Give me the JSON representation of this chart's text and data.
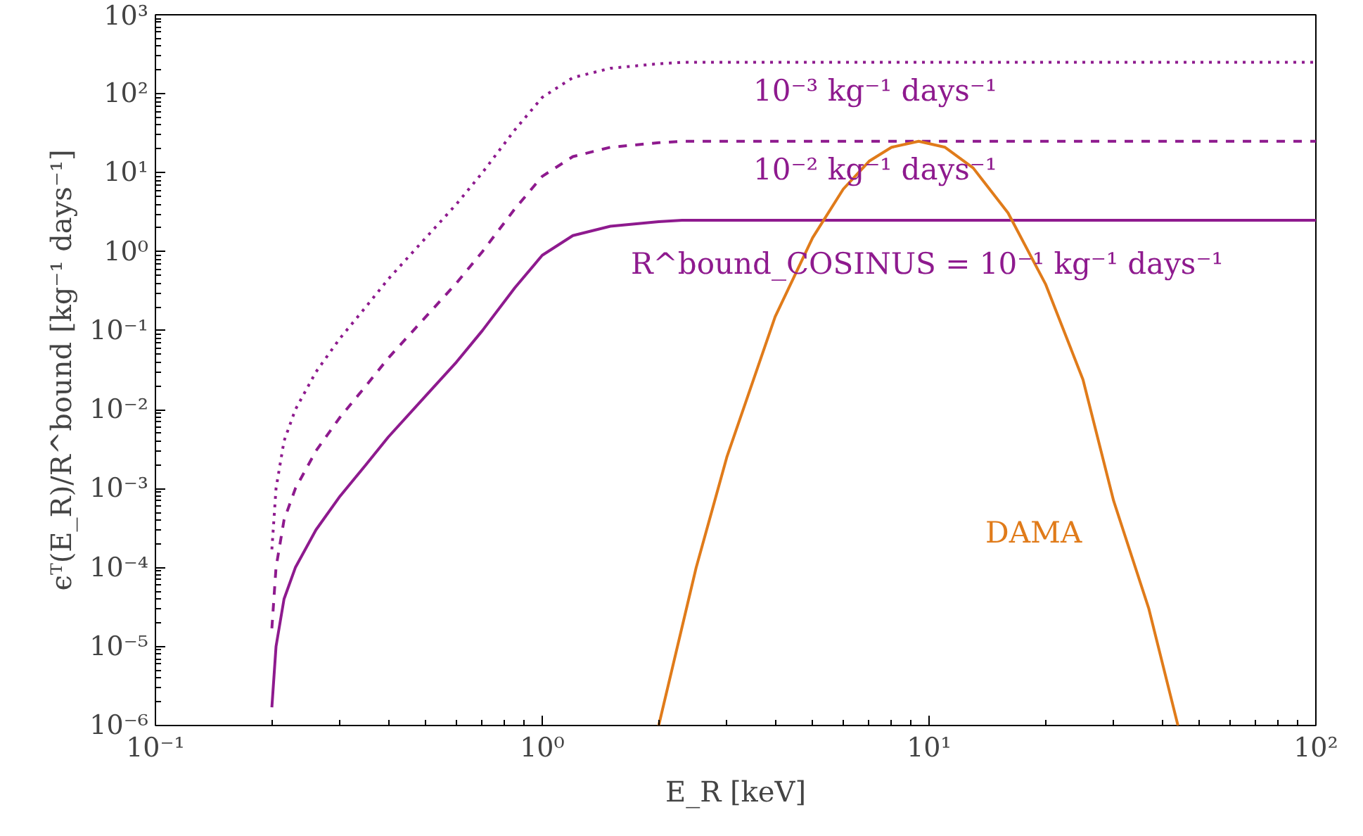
{
  "chart_data": {
    "type": "line",
    "xlabel": "E_R [keV]",
    "ylabel": "ϵᵀ(E_R)/R^bound [kg⁻¹ days⁻¹]",
    "log": "xy",
    "grid": false,
    "xlim": [
      0.1,
      100
    ],
    "ylim": [
      1e-06,
      1000
    ],
    "xticks": [
      {
        "value": 0.1,
        "label": "10⁻¹"
      },
      {
        "value": 1,
        "label": "10⁰"
      },
      {
        "value": 10,
        "label": "10¹"
      },
      {
        "value": 100,
        "label": "10²"
      }
    ],
    "yticks": [
      {
        "value": 1e-06,
        "label": "10⁻⁶"
      },
      {
        "value": 1e-05,
        "label": "10⁻⁵"
      },
      {
        "value": 0.0001,
        "label": "10⁻⁴"
      },
      {
        "value": 0.001,
        "label": "10⁻³"
      },
      {
        "value": 0.01,
        "label": "10⁻²"
      },
      {
        "value": 0.1,
        "label": "10⁻¹"
      },
      {
        "value": 1,
        "label": "10⁰"
      },
      {
        "value": 10,
        "label": "10¹"
      },
      {
        "value": 100,
        "label": "10²"
      },
      {
        "value": 1000,
        "label": "10³"
      }
    ],
    "series": [
      {
        "name": "R^bound_COSINUS = 10⁻¹ kg⁻¹ days⁻¹",
        "color": "#8e1a8e",
        "line_style": "solid",
        "x": [
          0.2,
          0.205,
          0.215,
          0.23,
          0.26,
          0.3,
          0.35,
          0.4,
          0.5,
          0.6,
          0.7,
          0.85,
          1.0,
          1.2,
          1.5,
          2.0,
          2.3,
          100
        ],
        "values": [
          1.7e-06,
          1e-05,
          4e-05,
          0.0001,
          0.0003,
          0.0008,
          0.002,
          0.0045,
          0.015,
          0.04,
          0.1,
          0.35,
          0.9,
          1.6,
          2.1,
          2.4,
          2.5,
          2.5
        ]
      },
      {
        "name": "10⁻² kg⁻¹ days⁻¹",
        "color": "#8e1a8e",
        "line_style": "dashed",
        "x": [
          0.2,
          0.205,
          0.215,
          0.23,
          0.26,
          0.3,
          0.35,
          0.4,
          0.5,
          0.6,
          0.7,
          0.85,
          1.0,
          1.2,
          1.5,
          2.0,
          2.3,
          100
        ],
        "values": [
          1.7e-05,
          0.0001,
          0.0004,
          0.001,
          0.003,
          0.008,
          0.02,
          0.045,
          0.15,
          0.4,
          1,
          3.5,
          9,
          16,
          21,
          24,
          25,
          25
        ]
      },
      {
        "name": "10⁻³ kg⁻¹ days⁻¹",
        "color": "#8e1a8e",
        "line_style": "dotted",
        "x": [
          0.2,
          0.205,
          0.215,
          0.23,
          0.26,
          0.3,
          0.35,
          0.4,
          0.5,
          0.6,
          0.7,
          0.85,
          1.0,
          1.2,
          1.5,
          2.0,
          2.3,
          100
        ],
        "values": [
          0.00017,
          0.001,
          0.004,
          0.01,
          0.03,
          0.08,
          0.2,
          0.45,
          1.5,
          4,
          10,
          35,
          90,
          160,
          210,
          240,
          250,
          250
        ]
      },
      {
        "name": "DAMA",
        "color": "#e07b1a",
        "line_style": "solid",
        "x": [
          2,
          2.5,
          3,
          4,
          5,
          6,
          7,
          8,
          9.4,
          11,
          13,
          16,
          20,
          25,
          30,
          37,
          44
        ],
        "values": [
          1e-06,
          0.0001,
          0.0025,
          0.15,
          1.5,
          6.2,
          14,
          21,
          25,
          21,
          11.5,
          3.1,
          0.39,
          0.024,
          0.0007,
          3e-05,
          1e-06
        ]
      }
    ]
  }
}
